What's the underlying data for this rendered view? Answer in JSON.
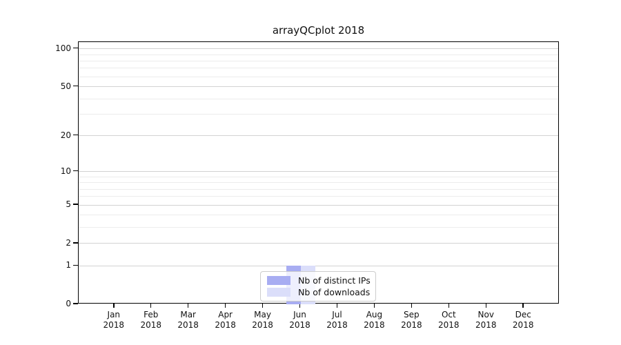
{
  "chart_data": {
    "type": "bar",
    "title": "arrayQCplot 2018",
    "categories": [
      "Jan",
      "Feb",
      "Mar",
      "Apr",
      "May",
      "Jun",
      "Jul",
      "Aug",
      "Sep",
      "Oct",
      "Nov",
      "Dec"
    ],
    "xtick_sublabel": "2018",
    "series": [
      {
        "name": "Nb of distinct IPs",
        "color": "#a8adf2",
        "values": [
          0,
          0,
          0,
          0,
          0,
          1,
          0,
          0,
          0,
          0,
          0,
          0
        ]
      },
      {
        "name": "Nb of downloads",
        "color": "#dbdefa",
        "values": [
          0,
          0,
          0,
          0,
          0,
          1,
          0,
          0,
          0,
          0,
          0,
          0
        ]
      }
    ],
    "yscale": "log1p",
    "yticks": [
      0,
      1,
      2,
      5,
      10,
      20,
      50,
      100
    ],
    "yminor": [
      3,
      4,
      6,
      7,
      8,
      9,
      30,
      40,
      60,
      70,
      80,
      90
    ],
    "ylim": [
      0,
      113
    ],
    "grid": "horizontal",
    "legend_position": "bottom-center-inside",
    "colors": {
      "grid_major": "#d2d2d2",
      "grid_minor": "#ececec",
      "axis": "#000000",
      "legend_border": "#cccccc",
      "background": "#ffffff"
    }
  }
}
